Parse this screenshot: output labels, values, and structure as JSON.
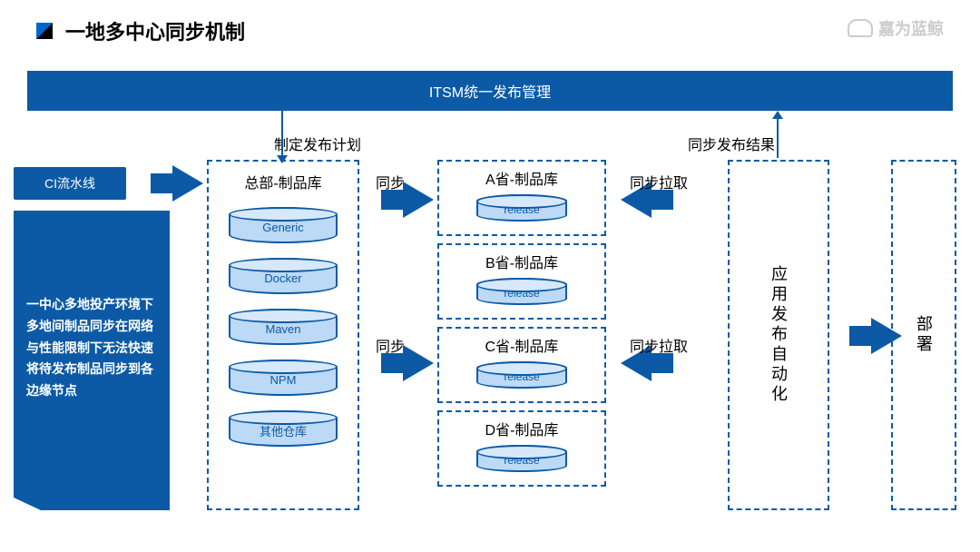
{
  "title": "一地多中心同步机制",
  "logo": "嘉为蓝鲸",
  "header": "ITSM统一发布管理",
  "ci_box": "CI流水线",
  "description": "一中心多地投产环境下多地间制品同步在网络与性能限制下无法快速将待发布制品同步到各边缘节点",
  "hq": {
    "title": "总部-制品库",
    "repos": [
      "Generic",
      "Docker",
      "Maven",
      "NPM",
      "其他仓库"
    ]
  },
  "provinces": [
    {
      "title": "A省-制品库",
      "sub": "release"
    },
    {
      "title": "B省-制品库",
      "sub": "release"
    },
    {
      "title": "C省-制品库",
      "sub": "release"
    },
    {
      "title": "D省-制品库",
      "sub": "release"
    }
  ],
  "automation": "应用发布自动化",
  "deploy": "部署",
  "labels": {
    "plan": "制定发布计划",
    "sync": "同步",
    "sync_pull": "同步拉取",
    "sync_result": "同步发布结果"
  },
  "colors": {
    "primary": "#0c5aa6",
    "cyl_fill": "#bcd9f5"
  }
}
